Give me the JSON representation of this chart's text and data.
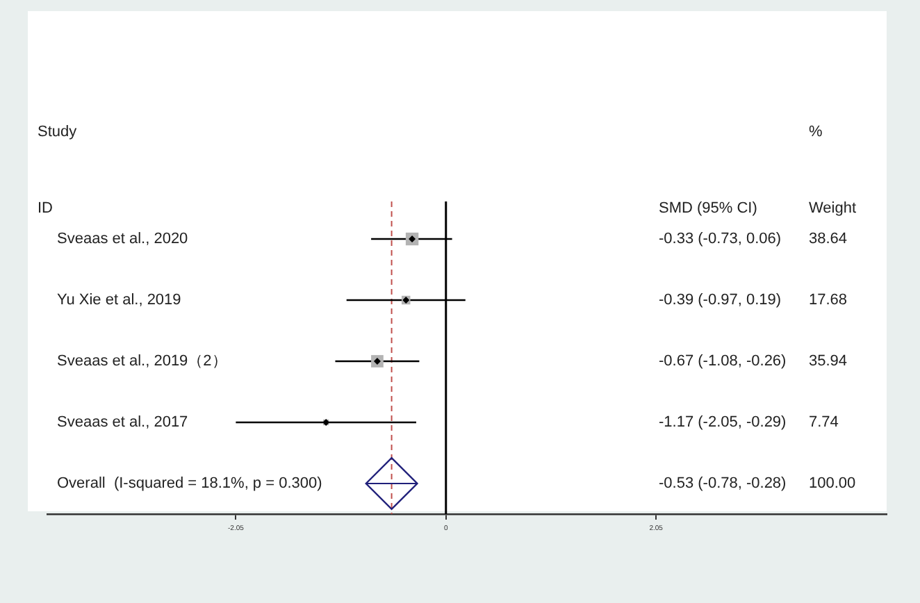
{
  "chart_data": {
    "type": "scatter",
    "orientation": "horizontal",
    "categories": [
      "Sveaas et al., 2020",
      "Yu Xie et al., 2019",
      "Sveaas et al., 2019（2）",
      "Sveaas et al., 2017",
      "Overall  (I-squared = 18.1%, p = 0.300)"
    ],
    "series": [
      {
        "type": "bubble",
        "marker": "square",
        "color": "#b3b3b3",
        "values": [
          -0.33,
          -0.39,
          -0.67,
          -1.17,
          null
        ],
        "errors": [
          [
            -0.73,
            0.06
          ],
          [
            -0.97,
            0.19
          ],
          [
            -1.08,
            -0.26
          ],
          [
            -2.05,
            -0.29
          ],
          null
        ],
        "sizes": [
          1,
          0.46,
          0.93,
          0.2,
          null
        ]
      },
      {
        "type": "scatter",
        "marker": "diamond",
        "color": "#1f1f7a",
        "values": [
          null,
          null,
          null,
          null,
          -0.53
        ],
        "errors": [
          null,
          null,
          null,
          null,
          [
            -0.78,
            -0.28
          ]
        ]
      }
    ],
    "xlim": [
      -3.89,
      4.3
    ],
    "xticks": [
      -2.05,
      0,
      2.05
    ],
    "ref_lines": [
      {
        "axis": "x",
        "value": 0,
        "color": "#000000",
        "line_style": "solid"
      },
      {
        "axis": "x",
        "value": -0.53,
        "color": "#c0504d",
        "line_style": "dashed"
      }
    ],
    "annotations": [
      "Study",
      "ID",
      "SMD (95% CI)",
      "%",
      "Weight",
      "-0.33 (-0.73, 0.06)",
      "38.64",
      "-0.39 (-0.97, 0.19)",
      "17.68",
      "-0.67 (-1.08, -0.26)",
      "35.94",
      "-1.17 (-2.05, -0.29)",
      "7.74",
      "-0.53 (-0.78, -0.28)",
      "100.00"
    ],
    "grid": false,
    "legend": false
  }
}
